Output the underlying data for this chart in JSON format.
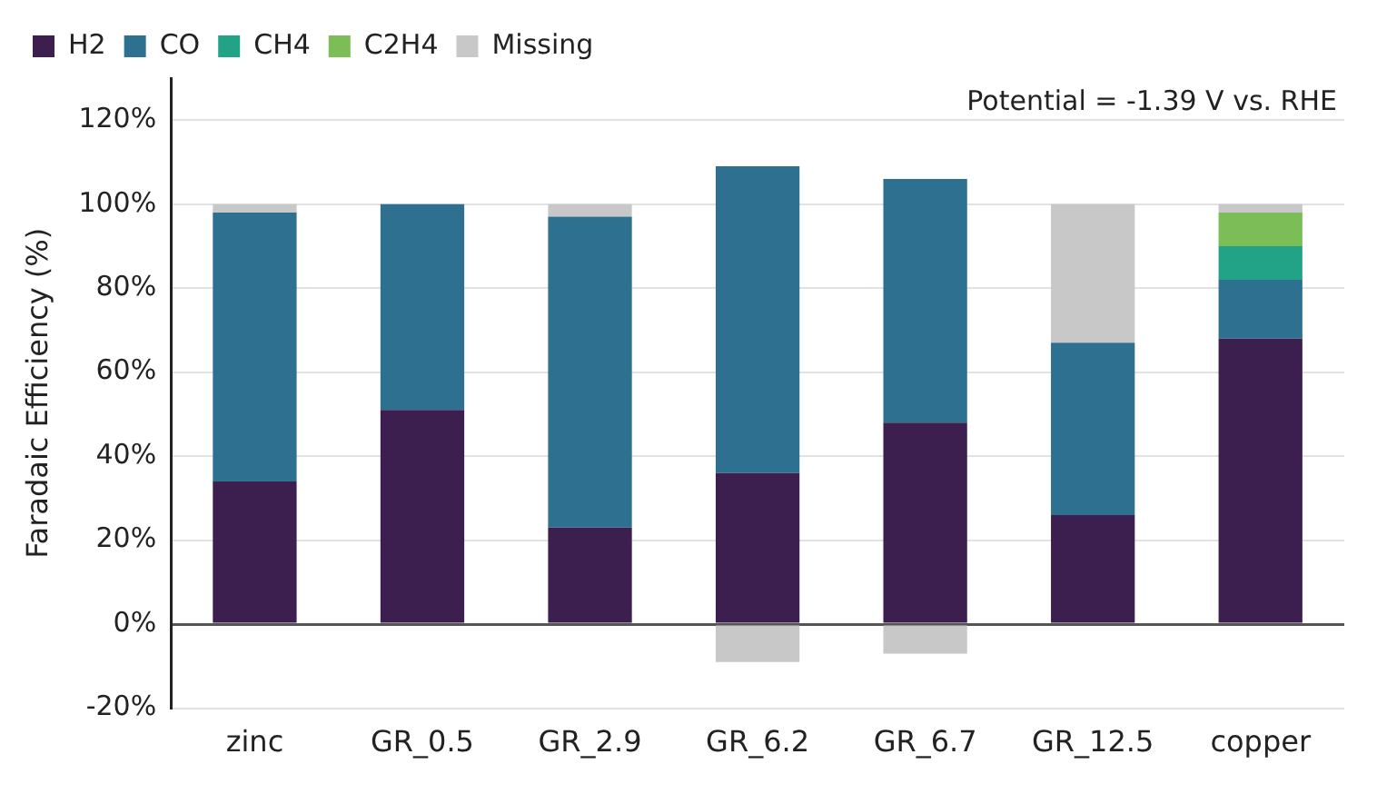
{
  "chart_data": {
    "type": "bar",
    "stacked": true,
    "ylabel": "Faradaic Efficiency (%)",
    "categories": [
      "zinc",
      "GR_0.5",
      "GR_2.9",
      "GR_6.2",
      "GR_6.7",
      "GR_12.5",
      "copper"
    ],
    "series": [
      {
        "name": "H2",
        "color": "#3d1f4f",
        "values": [
          34,
          51,
          23,
          36,
          48,
          26,
          68
        ]
      },
      {
        "name": "CO",
        "color": "#2e7090",
        "values": [
          64,
          49,
          74,
          73,
          58,
          41,
          14
        ]
      },
      {
        "name": "CH4",
        "color": "#22a387",
        "values": [
          null,
          null,
          null,
          null,
          null,
          null,
          8
        ]
      },
      {
        "name": "C2H4",
        "color": "#7bbd57",
        "values": [
          null,
          null,
          null,
          null,
          null,
          null,
          8
        ]
      },
      {
        "name": "Missing",
        "color": "#c8c8c8",
        "values": [
          2,
          null,
          3,
          -9,
          -7,
          33,
          2
        ]
      }
    ],
    "ylim": [
      -20,
      130
    ],
    "yticks": [
      {
        "value": -20,
        "label": "-20%"
      },
      {
        "value": 0,
        "label": "0%"
      },
      {
        "value": 20,
        "label": "20%"
      },
      {
        "value": 40,
        "label": "40%"
      },
      {
        "value": 60,
        "label": "60%"
      },
      {
        "value": 80,
        "label": "80%"
      },
      {
        "value": 100,
        "label": "100%"
      },
      {
        "value": 120,
        "label": "120%"
      }
    ],
    "grid": "y",
    "legend": "top left",
    "annotations": [
      "Potential = -1.39 V vs. RHE"
    ]
  }
}
